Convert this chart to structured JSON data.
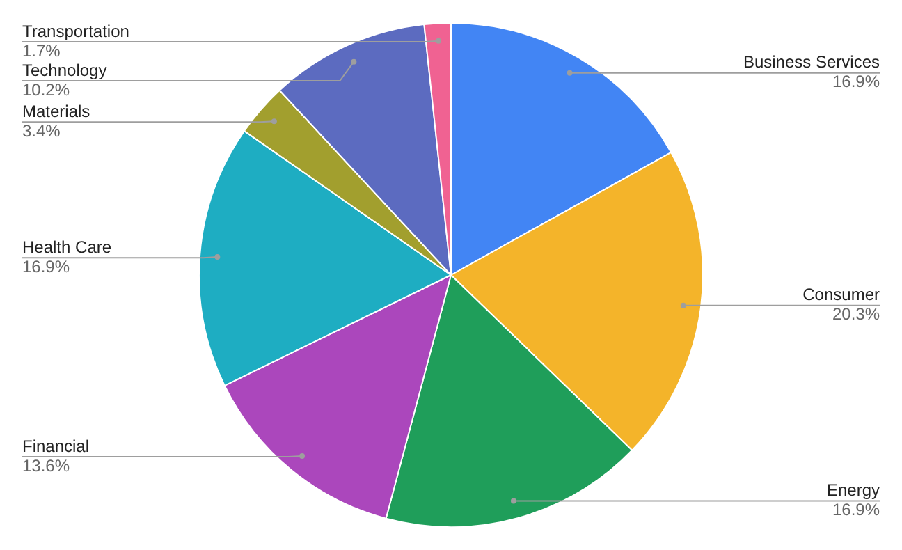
{
  "chart_data": {
    "type": "pie",
    "categories": [
      "Business Services",
      "Consumer",
      "Energy",
      "Financial",
      "Health Care",
      "Materials",
      "Technology",
      "Transportation"
    ],
    "values": [
      16.9,
      20.3,
      16.9,
      13.6,
      16.9,
      3.4,
      10.2,
      1.7
    ],
    "value_labels": [
      "16.9%",
      "20.3%",
      "16.9%",
      "13.6%",
      "16.9%",
      "3.4%",
      "10.2%",
      "1.7%"
    ],
    "colors": [
      "#4285f4",
      "#f4b42a",
      "#1f9e5a",
      "#ab47bc",
      "#1eadc2",
      "#a29f2e",
      "#5c6bc0",
      "#f06292"
    ]
  }
}
